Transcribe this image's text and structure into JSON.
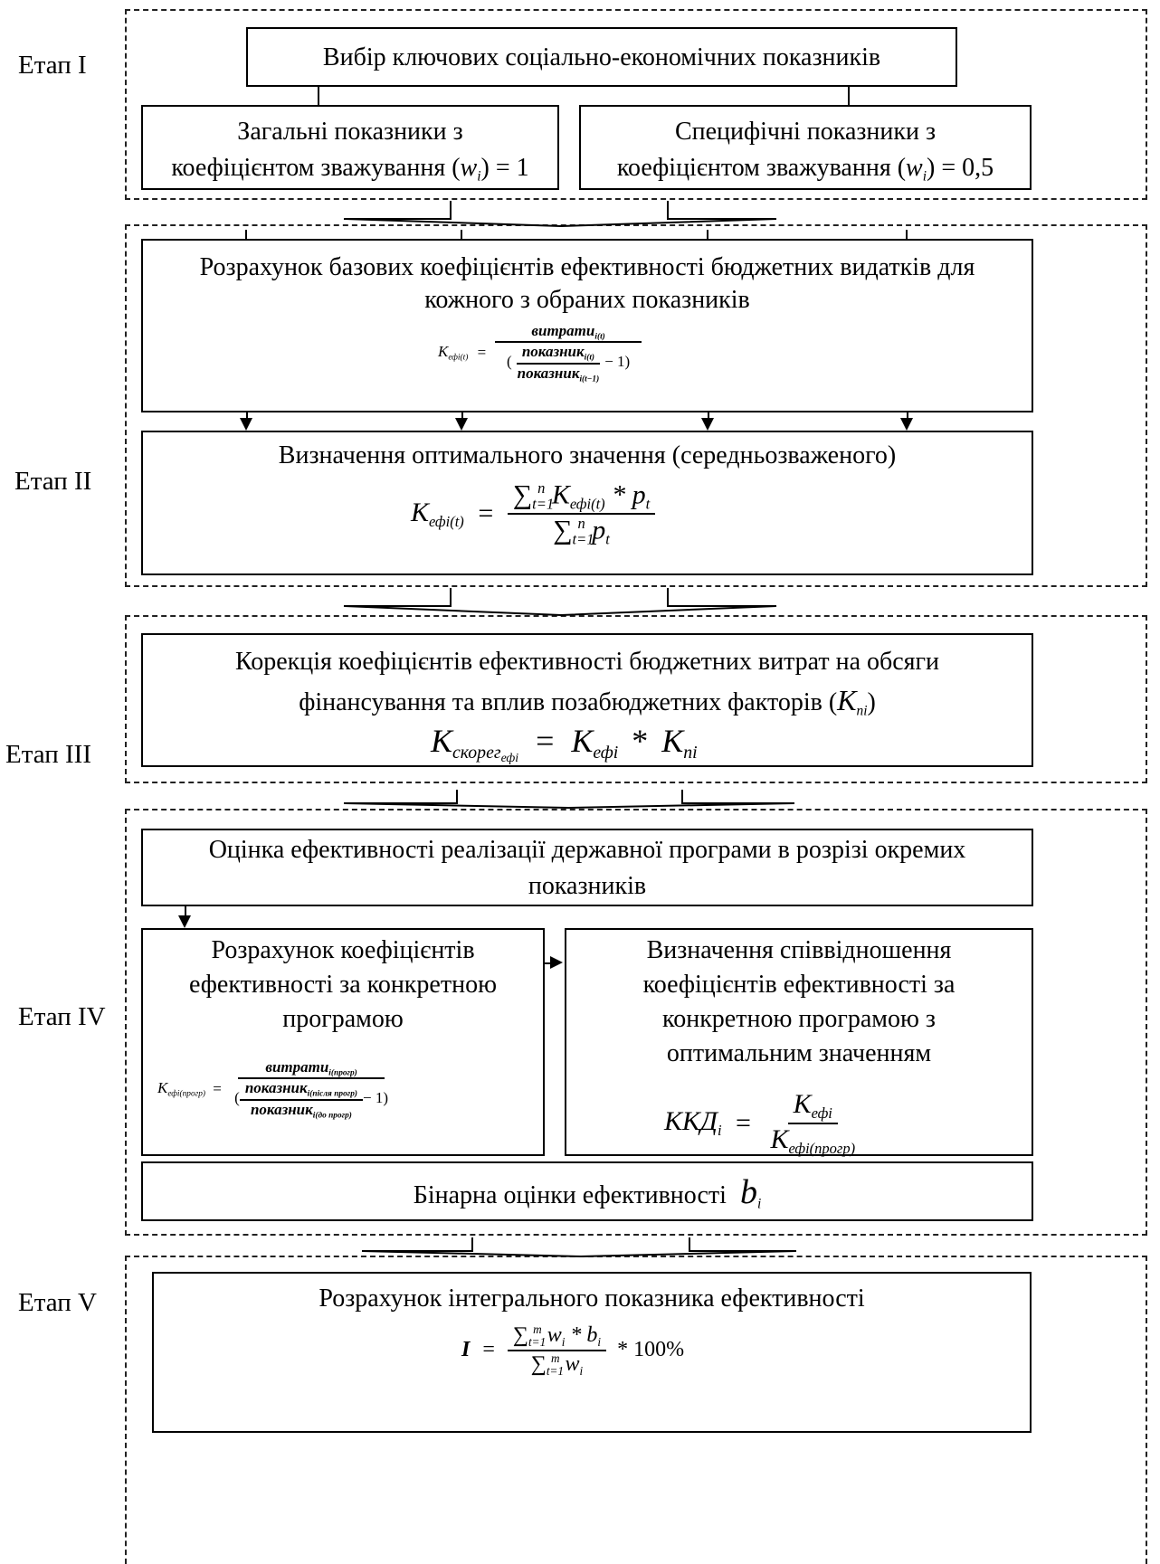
{
  "stages": {
    "s1": "Етап I",
    "s2": "Етап II",
    "s3": "Етап III",
    "s4": "Етап IV",
    "s5": "Етап V"
  },
  "stage1": {
    "top": "Вибір ключових соціально-економічних показників",
    "left_line1": "Загальні показники з",
    "left_line2": "коефіцієнтом зважування (",
    "left_eq": ") = 1",
    "right_line1": "Специфічні показники з",
    "right_line2": "коефіцієнтом зважування (",
    "right_eq": ") = 0,5",
    "w": "w",
    "w_sub": "i"
  },
  "stage2": {
    "base_title": "Розрахунок базових коефіцієнтів ефективності бюджетних видатків для кожного з обраних показників",
    "optimal_title": "Визначення оптимального значення (середньозваженого)"
  },
  "stage3": {
    "title_line1": "Корекція коефіцієнтів ефективності бюджетних витрат на обсяги",
    "title_line2": "фінансування та вплив позабюджетних факторів (",
    "title_close": ")"
  },
  "stage4": {
    "top": "Оцінка ефективності реалізації державної програми в розрізі окремих показників",
    "left_title": "Розрахунок коефіцієнтів ефективності за конкретною програмою",
    "right_title": "Визначення співвідношення коефіцієнтів ефективності за конкретною програмою з оптимальним значенням",
    "binary": "Бінарна оцінки ефективності"
  },
  "stage5": {
    "title": "Розрахунок інтегрального показника ефективності"
  },
  "formulas": {
    "K": "K",
    "efi_t": "ефі(t)",
    "efi": "ефі",
    "ni": "ni",
    "costs": "витрати",
    "i_t": "i(t)",
    "indicator": "показник",
    "i_t1": "i(t−1)",
    "minus1": "− 1)",
    "open": "(",
    "eq": "=",
    "sum": "∑",
    "n": "n",
    "t1": "t=1",
    "times_p": "* p",
    "p": "p",
    "t": "t",
    "korig_sub": "скорег",
    "korig_subsub": "ефі",
    "star": "*",
    "efi_prog": "ефі(прогр)",
    "i_prog": "i(прогр)",
    "i_after": "i(після прогр)",
    "i_before": "i(до прогр)",
    "kkd": "ККД",
    "i": "i",
    "b": "b",
    "I": "I",
    "m": "m",
    "w": "w",
    "wb": "* b",
    "percent": "* 100%"
  }
}
